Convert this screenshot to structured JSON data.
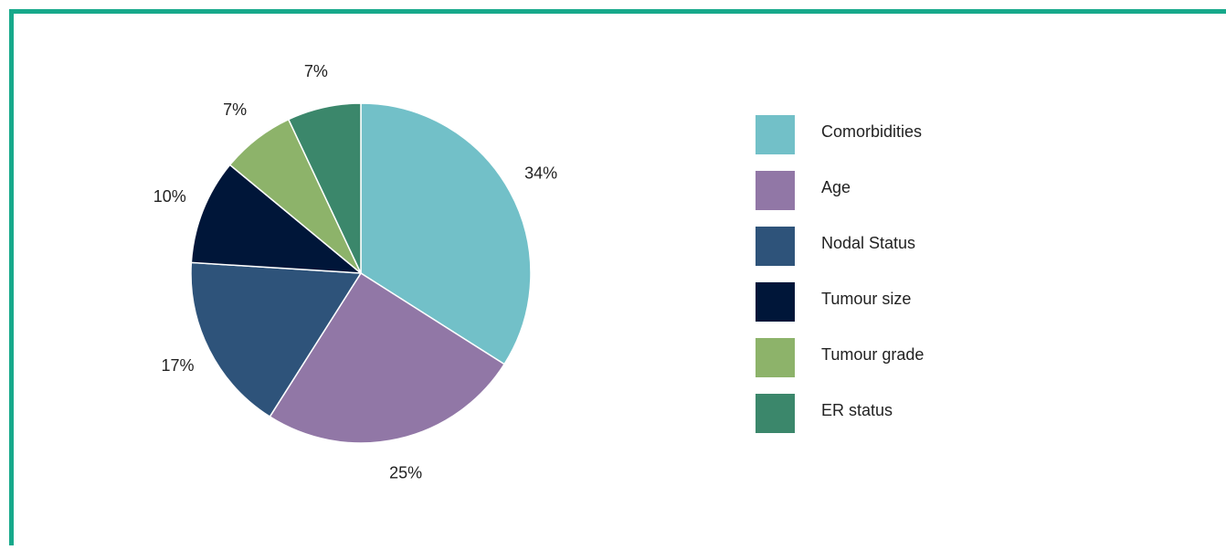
{
  "chart_data": {
    "type": "pie",
    "categories": [
      "Comorbidities",
      "Age",
      "Nodal Status",
      "Tumour size",
      "Tumour grade",
      "ER status"
    ],
    "values": [
      34,
      25,
      17,
      10,
      7,
      7
    ],
    "value_labels": [
      "34%",
      "25%",
      "17%",
      "10%",
      "7%",
      "7%"
    ],
    "colors": [
      "#72c0c8",
      "#9177a6",
      "#2e537a",
      "#001639",
      "#8db36a",
      "#3b876b"
    ],
    "legend": "right"
  }
}
